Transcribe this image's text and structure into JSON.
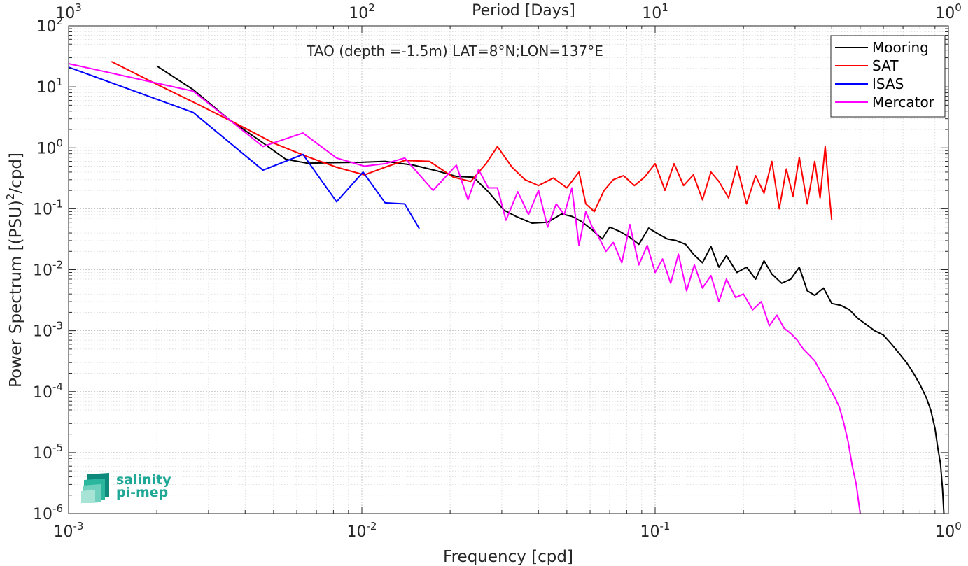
{
  "chart_data": {
    "type": "line",
    "title": "TAO (depth =-1.5m) LAT=8°N;LON=137°E",
    "xlabel": "Frequency [cpd]",
    "ylabel": "Power Spectrum [(PSU)",
    "ylabel_sup": "2",
    "ylabel_tail": "/cpd]",
    "top_xlabel": "Period [Days]",
    "xscale": "log",
    "yscale": "log",
    "xlim": [
      0.001,
      1
    ],
    "ylim": [
      1e-06,
      100
    ],
    "grid": true,
    "legend_position": "top-right",
    "x_ticks": [
      {
        "value": 0.001,
        "base": "10",
        "exp": "-3"
      },
      {
        "value": 0.01,
        "base": "10",
        "exp": "-2"
      },
      {
        "value": 0.1,
        "base": "10",
        "exp": "-1"
      },
      {
        "value": 1,
        "base": "10",
        "exp": "0"
      }
    ],
    "top_x_ticks": [
      {
        "value": 0.001,
        "base": "10",
        "exp": "3"
      },
      {
        "value": 0.01,
        "base": "10",
        "exp": "2"
      },
      {
        "value": 0.1,
        "base": "10",
        "exp": "1"
      },
      {
        "value": 1,
        "base": "10",
        "exp": "0"
      }
    ],
    "y_ticks": [
      {
        "value": 100,
        "base": "10",
        "exp": "2"
      },
      {
        "value": 10,
        "base": "10",
        "exp": "1"
      },
      {
        "value": 1,
        "base": "10",
        "exp": "0"
      },
      {
        "value": 0.1,
        "base": "10",
        "exp": "-1"
      },
      {
        "value": 0.01,
        "base": "10",
        "exp": "-2"
      },
      {
        "value": 0.001,
        "base": "10",
        "exp": "-3"
      },
      {
        "value": 0.0001,
        "base": "10",
        "exp": "-4"
      },
      {
        "value": 1e-05,
        "base": "10",
        "exp": "-5"
      },
      {
        "value": 1e-06,
        "base": "10",
        "exp": "-6"
      }
    ],
    "series": [
      {
        "name": "Mooring",
        "color": "#000000",
        "x": [
          0.002,
          0.00266,
          0.0035,
          0.0045,
          0.0055,
          0.0065,
          0.008,
          0.01,
          0.012,
          0.015,
          0.018,
          0.021,
          0.024,
          0.027,
          0.0305,
          0.0335,
          0.038,
          0.043,
          0.048,
          0.052,
          0.056,
          0.061,
          0.066,
          0.07,
          0.076,
          0.082,
          0.088,
          0.095,
          0.103,
          0.11,
          0.118,
          0.127,
          0.135,
          0.145,
          0.155,
          0.165,
          0.175,
          0.19,
          0.205,
          0.22,
          0.235,
          0.25,
          0.27,
          0.29,
          0.31,
          0.33,
          0.35,
          0.375,
          0.4,
          0.43,
          0.46,
          0.49,
          0.52,
          0.56,
          0.6,
          0.64,
          0.68,
          0.72,
          0.76,
          0.8,
          0.84,
          0.87,
          0.9,
          0.92,
          0.94,
          0.955,
          0.965
        ],
        "y": [
          22,
          9,
          3,
          1.3,
          0.65,
          0.56,
          0.57,
          0.58,
          0.6,
          0.52,
          0.42,
          0.34,
          0.33,
          0.19,
          0.095,
          0.075,
          0.058,
          0.06,
          0.082,
          0.075,
          0.062,
          0.045,
          0.032,
          0.05,
          0.042,
          0.034,
          0.026,
          0.048,
          0.038,
          0.032,
          0.03,
          0.026,
          0.018,
          0.013,
          0.024,
          0.011,
          0.017,
          0.009,
          0.011,
          0.007,
          0.014,
          0.0085,
          0.006,
          0.007,
          0.011,
          0.0045,
          0.0038,
          0.005,
          0.0028,
          0.0026,
          0.0022,
          0.0016,
          0.0013,
          0.001,
          0.00085,
          0.0006,
          0.00042,
          0.0003,
          0.0002,
          0.00013,
          8e-05,
          5e-05,
          2.5e-05,
          1.2e-05,
          6.5e-06,
          2.5e-06,
          1e-06
        ]
      },
      {
        "name": "SAT",
        "color": "#ff0000",
        "x": [
          0.0014,
          0.002,
          0.0028,
          0.004,
          0.005,
          0.0065,
          0.0082,
          0.0102,
          0.012,
          0.014,
          0.017,
          0.0205,
          0.0235,
          0.0265,
          0.029,
          0.0325,
          0.036,
          0.04,
          0.045,
          0.05,
          0.055,
          0.058,
          0.062,
          0.067,
          0.072,
          0.078,
          0.085,
          0.092,
          0.1,
          0.108,
          0.116,
          0.125,
          0.135,
          0.145,
          0.155,
          0.165,
          0.178,
          0.19,
          0.205,
          0.22,
          0.235,
          0.25,
          0.265,
          0.28,
          0.295,
          0.31,
          0.33,
          0.35,
          0.365,
          0.38,
          0.395,
          0.4
        ],
        "y": [
          26,
          11,
          5,
          2.1,
          1.2,
          0.72,
          0.48,
          0.36,
          0.48,
          0.62,
          0.6,
          0.33,
          0.28,
          0.55,
          1.05,
          0.48,
          0.3,
          0.24,
          0.32,
          0.22,
          0.4,
          0.12,
          0.09,
          0.2,
          0.3,
          0.35,
          0.24,
          0.33,
          0.55,
          0.2,
          0.55,
          0.24,
          0.36,
          0.14,
          0.4,
          0.28,
          0.15,
          0.5,
          0.12,
          0.35,
          0.18,
          0.6,
          0.1,
          0.45,
          0.16,
          0.7,
          0.12,
          0.6,
          0.15,
          1.05,
          0.12,
          0.065
        ]
      },
      {
        "name": "ISAS",
        "color": "#0000ff",
        "x": [
          0.001,
          0.00266,
          0.0046,
          0.0063,
          0.0082,
          0.0101,
          0.012,
          0.014,
          0.0157
        ],
        "y": [
          21,
          3.8,
          0.43,
          0.78,
          0.13,
          0.4,
          0.125,
          0.12,
          0.047
        ]
      },
      {
        "name": "Mercator",
        "color": "#ff00ff",
        "x": [
          0.001,
          0.00266,
          0.0046,
          0.0063,
          0.0082,
          0.0102,
          0.012,
          0.014,
          0.0175,
          0.021,
          0.023,
          0.025,
          0.027,
          0.029,
          0.031,
          0.034,
          0.037,
          0.04,
          0.043,
          0.046,
          0.049,
          0.052,
          0.055,
          0.058,
          0.061,
          0.064,
          0.068,
          0.072,
          0.077,
          0.082,
          0.088,
          0.094,
          0.1,
          0.106,
          0.113,
          0.12,
          0.128,
          0.136,
          0.145,
          0.155,
          0.165,
          0.175,
          0.188,
          0.2,
          0.215,
          0.23,
          0.245,
          0.26,
          0.275,
          0.29,
          0.305,
          0.32,
          0.335,
          0.35,
          0.365,
          0.38,
          0.395,
          0.41,
          0.425,
          0.44,
          0.455,
          0.47,
          0.485,
          0.5
        ],
        "y": [
          24,
          8.5,
          1.05,
          1.75,
          0.68,
          0.5,
          0.55,
          0.68,
          0.2,
          0.52,
          0.14,
          0.44,
          0.22,
          0.22,
          0.065,
          0.19,
          0.08,
          0.2,
          0.05,
          0.12,
          0.08,
          0.22,
          0.025,
          0.09,
          0.05,
          0.035,
          0.02,
          0.028,
          0.013,
          0.055,
          0.012,
          0.025,
          0.009,
          0.015,
          0.006,
          0.018,
          0.0045,
          0.012,
          0.005,
          0.008,
          0.003,
          0.007,
          0.0035,
          0.004,
          0.0022,
          0.003,
          0.0012,
          0.0018,
          0.0011,
          0.0009,
          0.0007,
          0.0005,
          0.0004,
          0.00032,
          0.00022,
          0.00016,
          0.00011,
          8e-05,
          5.5e-05,
          3e-05,
          1.5e-05,
          6e-06,
          3e-06,
          1e-06
        ]
      }
    ]
  },
  "logo": {
    "line1": "salinity",
    "line2": "pi-mep",
    "colors": [
      "#0e8a7c",
      "#2bb79e",
      "#6fd1bd",
      "#a8e4d6"
    ]
  }
}
